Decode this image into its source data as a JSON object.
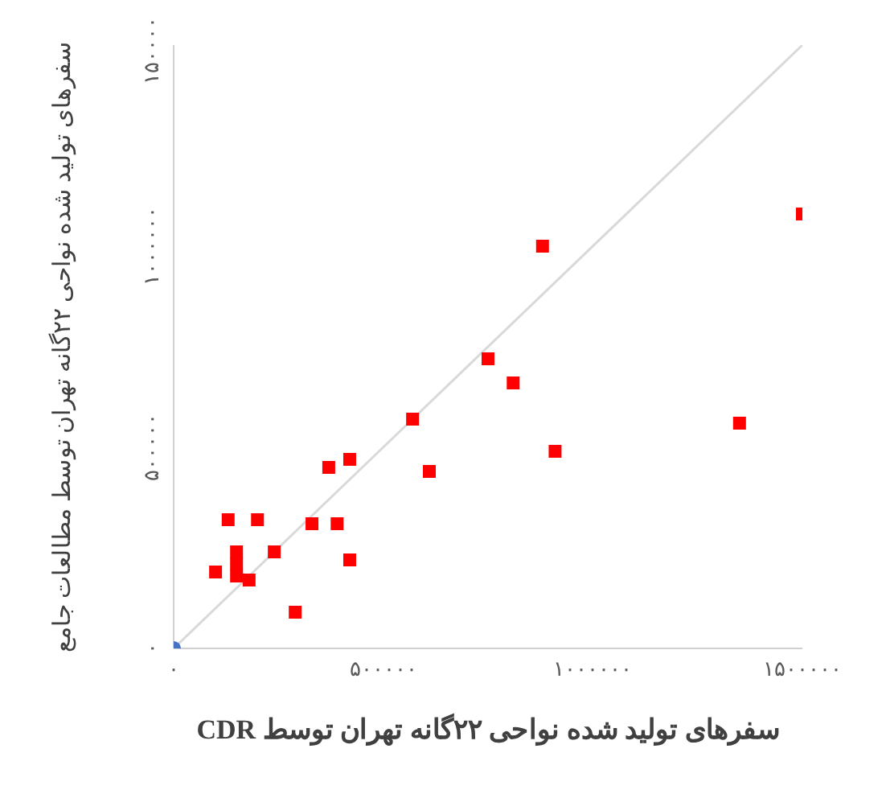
{
  "chart_data": {
    "type": "scatter",
    "xlabel": "سفرهای تولید شده نواحی ۲۲گانه تهران توسط CDR",
    "ylabel": "سفرهای تولید شده نواحی ۲۲گانه تهران توسط مطالعات جامع",
    "xlim": [
      0,
      1500000
    ],
    "ylim": [
      0,
      1500000
    ],
    "xticks": [
      {
        "value": 0,
        "label": "۰"
      },
      {
        "value": 500000,
        "label": "۵۰۰۰۰۰"
      },
      {
        "value": 1000000,
        "label": "۱۰۰۰۰۰۰"
      },
      {
        "value": 1500000,
        "label": "۱۵۰۰۰۰۰"
      }
    ],
    "yticks": [
      {
        "value": 0,
        "label": "۰"
      },
      {
        "value": 500000,
        "label": "۵۰۰۰۰۰"
      },
      {
        "value": 1000000,
        "label": "۱۰۰۰۰۰۰"
      },
      {
        "value": 1500000,
        "label": "۱۵۰۰۰۰۰"
      }
    ],
    "series": [
      {
        "type": "line",
        "color": "#d9d9d9",
        "marker": "none",
        "line_style": "solid",
        "x": [
          0,
          1500000
        ],
        "values": [
          0,
          1500000
        ]
      },
      {
        "color": "#4472c4",
        "marker": "circle",
        "x": [
          0
        ],
        "values": [
          0
        ]
      },
      {
        "color": "#ff0000",
        "marker": "square",
        "x": [
          100000,
          130000,
          200000,
          150000,
          150000,
          150000,
          180000,
          240000,
          290000,
          330000,
          370000,
          390000,
          420000,
          420000,
          570000,
          610000,
          750000,
          810000,
          880000,
          910000,
          1350000,
          1500000
        ],
        "values": [
          190000,
          320000,
          320000,
          210000,
          240000,
          180000,
          170000,
          240000,
          90000,
          310000,
          450000,
          310000,
          220000,
          470000,
          570000,
          440000,
          720000,
          660000,
          1000000,
          490000,
          560000,
          1080000
        ]
      }
    ]
  }
}
